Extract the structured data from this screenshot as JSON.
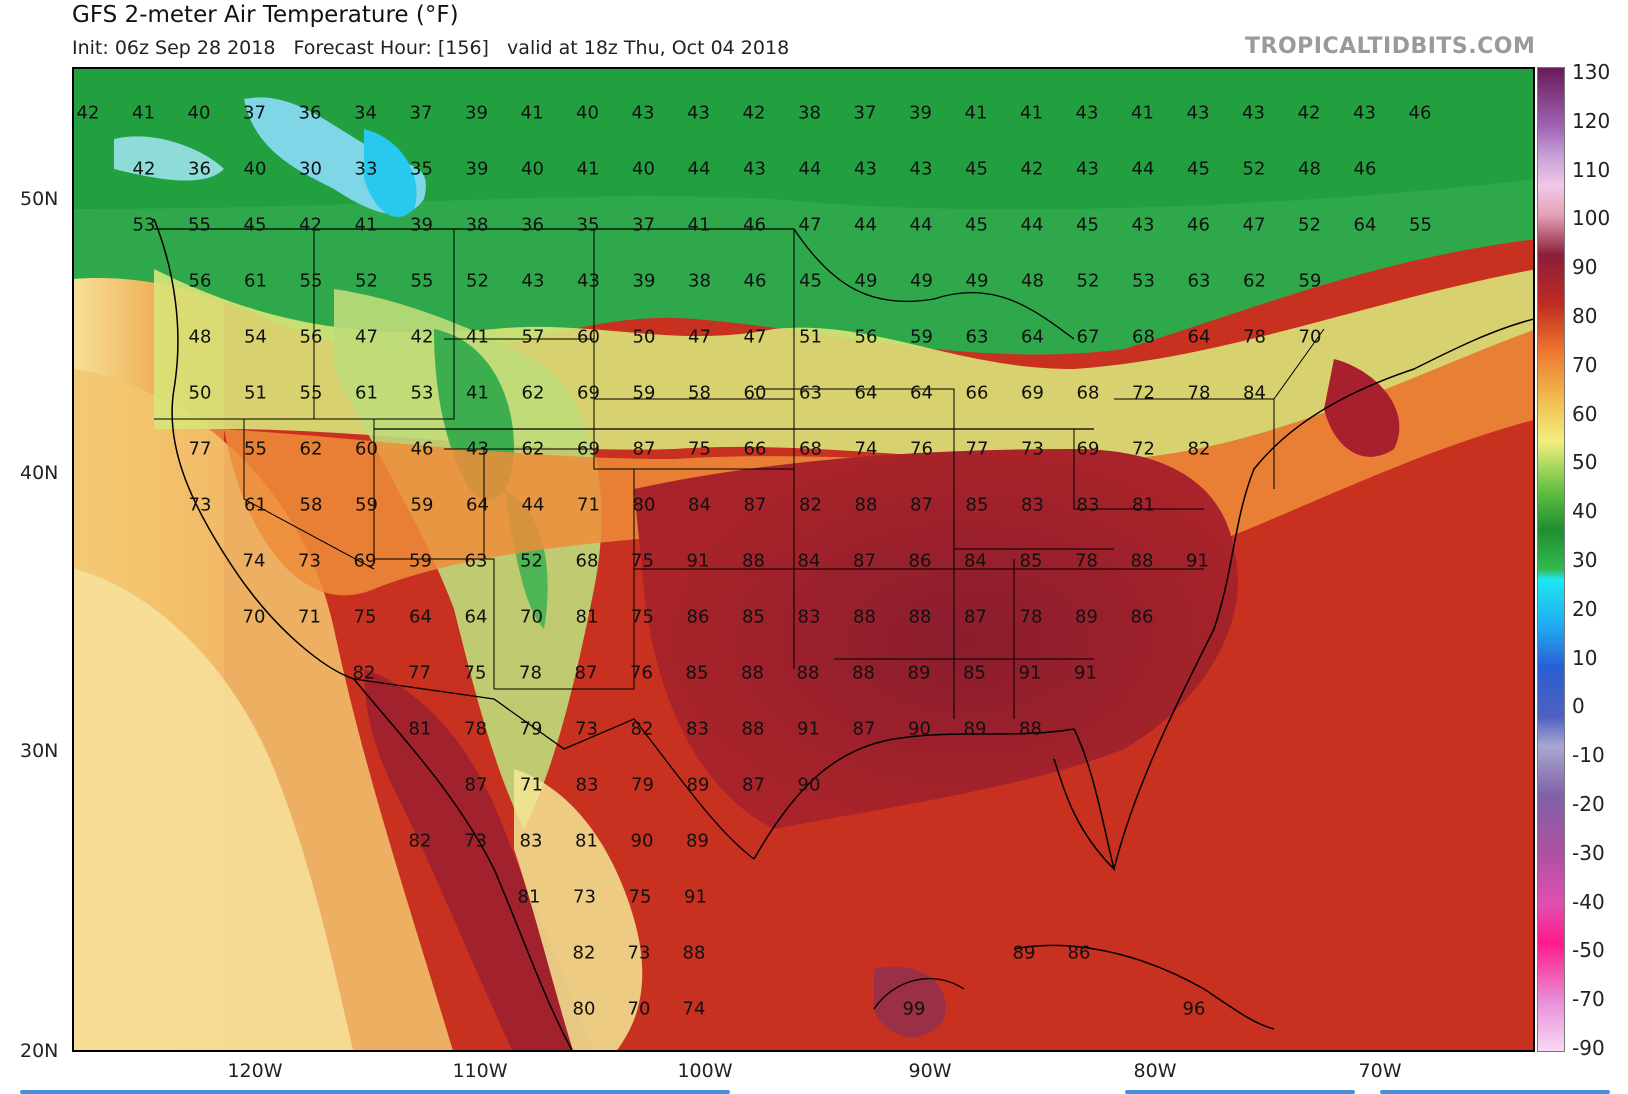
{
  "header": {
    "title": "GFS 2-meter Air Temperature (°F)",
    "subtitle": "Init: 06z Sep 28 2018   Forecast Hour: [156]   valid at 18z Thu, Oct 04 2018",
    "brand": "TROPICALTIDBITS.COM"
  },
  "axes": {
    "lat_labels": [
      "50N",
      "40N",
      "30N",
      "20N"
    ],
    "lon_labels": [
      "120W",
      "110W",
      "100W",
      "90W",
      "80W",
      "70W"
    ]
  },
  "colorbar": {
    "labels": [
      "130",
      "120",
      "110",
      "100",
      "90",
      "80",
      "70",
      "60",
      "50",
      "40",
      "30",
      "20",
      "10",
      "0",
      "-10",
      "-20",
      "-30",
      "-40",
      "-50",
      "-70",
      "-90"
    ]
  },
  "colors": {
    "hot": "#8e1e2c",
    "warm": "#c92a1e",
    "mild": "#f2a040",
    "cool": "#e8ee80",
    "green": "#2ea84a",
    "cold": "#5fd6ee"
  },
  "temperature_rows": [
    [
      "42",
      "41",
      "40",
      "37",
      "36",
      "34",
      "37",
      "39",
      "41",
      "40",
      "43",
      "43",
      "42",
      "38",
      "37",
      "39",
      "41",
      "41",
      "43",
      "41",
      "43",
      "43",
      "42",
      "43",
      "46"
    ],
    [
      "42",
      "36",
      "40",
      "30",
      "33",
      "35",
      "39",
      "40",
      "41",
      "40",
      "44",
      "43",
      "44",
      "43",
      "43",
      "45",
      "42",
      "43",
      "44",
      "45",
      "52",
      "48",
      "46"
    ],
    [
      "53",
      "55",
      "45",
      "42",
      "41",
      "39",
      "38",
      "36",
      "35",
      "37",
      "41",
      "46",
      "47",
      "44",
      "44",
      "45",
      "44",
      "45",
      "43",
      "46",
      "47",
      "52",
      "64",
      "55"
    ],
    [
      "56",
      "61",
      "55",
      "52",
      "55",
      "52",
      "43",
      "43",
      "39",
      "38",
      "46",
      "45",
      "49",
      "49",
      "49",
      "48",
      "52",
      "53",
      "63",
      "62",
      "59"
    ],
    [
      "48",
      "54",
      "56",
      "47",
      "42",
      "41",
      "57",
      "60",
      "50",
      "47",
      "47",
      "51",
      "56",
      "59",
      "63",
      "64",
      "67",
      "68",
      "64",
      "78",
      "70"
    ],
    [
      "50",
      "51",
      "55",
      "61",
      "53",
      "41",
      "62",
      "69",
      "59",
      "58",
      "60",
      "63",
      "64",
      "64",
      "66",
      "69",
      "68",
      "72",
      "78",
      "84"
    ],
    [
      "77",
      "55",
      "62",
      "60",
      "46",
      "43",
      "62",
      "69",
      "87",
      "75",
      "66",
      "68",
      "74",
      "76",
      "77",
      "73",
      "69",
      "72",
      "82"
    ],
    [
      "73",
      "61",
      "58",
      "59",
      "59",
      "64",
      "44",
      "71",
      "80",
      "84",
      "87",
      "82",
      "88",
      "87",
      "85",
      "83",
      "83",
      "81"
    ],
    [
      "74",
      "73",
      "69",
      "59",
      "63",
      "52",
      "68",
      "75",
      "91",
      "88",
      "84",
      "87",
      "86",
      "84",
      "85",
      "78",
      "88",
      "91"
    ],
    [
      "70",
      "71",
      "75",
      "64",
      "64",
      "70",
      "81",
      "75",
      "86",
      "85",
      "83",
      "88",
      "88",
      "87",
      "78",
      "89",
      "86"
    ],
    [
      "82",
      "77",
      "75",
      "78",
      "87",
      "76",
      "85",
      "88",
      "88",
      "88",
      "89",
      "85",
      "91",
      "91"
    ],
    [
      "81",
      "78",
      "79",
      "73",
      "82",
      "83",
      "88",
      "91",
      "87",
      "90",
      "89",
      "88"
    ],
    [
      "87",
      "71",
      "83",
      "79",
      "89",
      "87",
      "90"
    ],
    [
      "82",
      "73",
      "83",
      "81",
      "90",
      "89"
    ],
    [
      "81",
      "73",
      "75",
      "91"
    ],
    [
      "82",
      "73",
      "88",
      "89",
      "86"
    ],
    [
      "80",
      "70",
      "74",
      "99",
      "96"
    ]
  ]
}
